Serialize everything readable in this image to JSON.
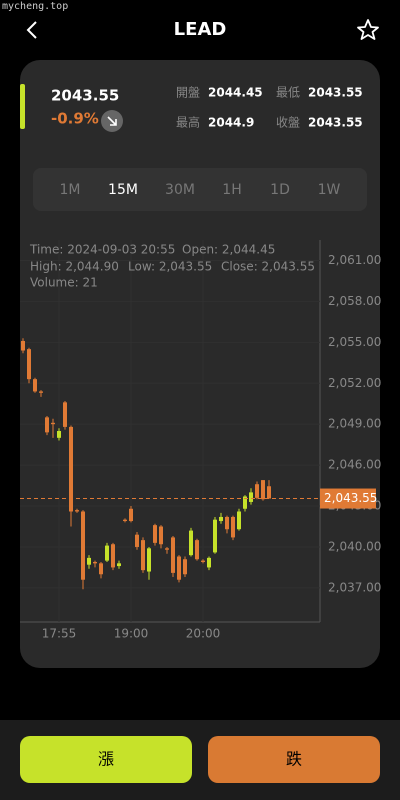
{
  "watermark": "mycheng.top",
  "header": {
    "title": "LEAD"
  },
  "quote": {
    "price": "2043.55",
    "change": "-0.9%",
    "stats": [
      {
        "label": "開盤",
        "value": "2044.45"
      },
      {
        "label": "最低",
        "value": "2043.55"
      },
      {
        "label": "最高",
        "value": "2044.9"
      },
      {
        "label": "收盤",
        "value": "2043.55"
      }
    ]
  },
  "intervals": {
    "options": [
      "1M",
      "15M",
      "30M",
      "1H",
      "1D",
      "1W"
    ],
    "selected": "15M"
  },
  "chart_data": {
    "type": "candlestick",
    "info": [
      "Time: 2024-09-03 20:55",
      "Open: 2,044.45",
      "High: 2,044.90",
      "Low: 2,043.55",
      "Close: 2,043.55",
      "Volume: 21"
    ],
    "open": [
      2055.1,
      2054.5,
      2052.3,
      2051.4,
      2049.5,
      2049.1,
      2048.0,
      2050.6,
      2048.8,
      2042.7,
      2042.6,
      2038.7,
      2038.9,
      2038.8,
      2039.0,
      2040.2,
      2038.6,
      2042.0,
      2042.8,
      2040.9,
      2040.5,
      2038.2,
      2041.6,
      2041.5,
      2039.9,
      2040.7,
      2039.3,
      2039.1,
      2039.4,
      2040.5,
      2039.0,
      2038.5,
      2039.6,
      2041.9,
      2042.2,
      2042.2,
      2041.3,
      2042.8,
      2043.3,
      2044.6,
      2044.9,
      2044.45
    ],
    "high": [
      2055.3,
      2054.6,
      2052.4,
      2051.5,
      2049.6,
      2049.4,
      2048.7,
      2050.7,
      2048.9,
      2042.8,
      2042.7,
      2039.4,
      2039.0,
      2038.9,
      2040.3,
      2040.3,
      2039.0,
      2042.1,
      2043.0,
      2041.1,
      2040.7,
      2040.0,
      2041.7,
      2041.6,
      2040.0,
      2040.8,
      2039.4,
      2039.3,
      2041.4,
      2040.6,
      2039.1,
      2039.3,
      2042.2,
      2042.5,
      2042.3,
      2042.3,
      2042.8,
      2043.8,
      2044.3,
      2044.8,
      2044.9,
      2044.9
    ],
    "low": [
      2054.2,
      2052.0,
      2051.3,
      2051.0,
      2048.2,
      2048.0,
      2047.8,
      2048.6,
      2041.5,
      2042.5,
      2036.9,
      2038.4,
      2038.5,
      2037.7,
      2038.9,
      2038.3,
      2038.4,
      2041.8,
      2041.8,
      2039.8,
      2038.1,
      2037.6,
      2040.1,
      2039.9,
      2039.5,
      2037.8,
      2037.4,
      2037.8,
      2039.3,
      2039.0,
      2038.8,
      2038.3,
      2039.5,
      2041.7,
      2041.0,
      2040.5,
      2041.2,
      2042.6,
      2043.1,
      2043.5,
      2043.4,
      2043.55
    ],
    "close": [
      2054.4,
      2052.3,
      2051.4,
      2051.3,
      2048.4,
      2049.0,
      2048.5,
      2048.8,
      2042.6,
      2042.6,
      2037.6,
      2039.2,
      2038.8,
      2038.0,
      2040.1,
      2038.5,
      2038.8,
      2041.9,
      2041.9,
      2040.0,
      2038.3,
      2039.9,
      2040.3,
      2040.2,
      2039.8,
      2038.1,
      2037.6,
      2038.0,
      2041.2,
      2039.1,
      2038.9,
      2039.2,
      2042.0,
      2042.2,
      2041.3,
      2040.7,
      2042.6,
      2043.7,
      2044.0,
      2043.6,
      2043.5,
      2043.55
    ],
    "up_color": "#c6e22a",
    "down_color": "#e07a35",
    "xlim": [
      -0.5,
      49.5
    ],
    "xticks": [
      {
        "value": 6,
        "label": "17:55"
      },
      {
        "value": 18,
        "label": "19:00"
      },
      {
        "value": 30,
        "label": "20:00"
      }
    ],
    "ylim": [
      2034.5,
      2062.5
    ],
    "yticks": [
      {
        "value": 2037,
        "label": "2,037.00"
      },
      {
        "value": 2040,
        "label": "2,040.00"
      },
      {
        "value": 2043,
        "label": "2,043.00"
      },
      {
        "value": 2046,
        "label": "2,046.00"
      },
      {
        "value": 2049,
        "label": "2,049.00"
      },
      {
        "value": 2052,
        "label": "2,052.00"
      },
      {
        "value": 2055,
        "label": "2,055.00"
      },
      {
        "value": 2058,
        "label": "2,058.00"
      },
      {
        "value": 2061,
        "label": "2,061.00"
      }
    ],
    "last_price": {
      "value": 2043.55,
      "label": "2,043.55"
    },
    "grid": true
  },
  "actions": {
    "buy": "漲",
    "sell": "跌"
  }
}
